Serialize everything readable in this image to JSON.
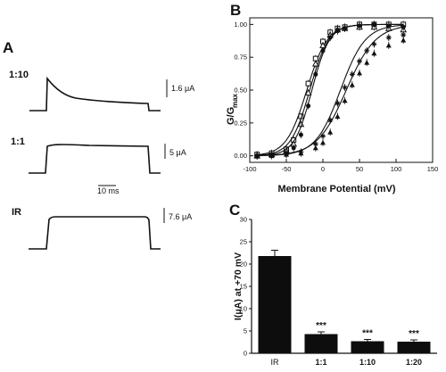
{
  "panel_labels": {
    "a": "A",
    "b": "B",
    "c": "C"
  },
  "traces": [
    {
      "label": "1:10",
      "scale": "1.6 μA"
    },
    {
      "label": "1:1",
      "scale": "5 μA"
    },
    {
      "label": "IR",
      "scale": "7.6 μA"
    }
  ],
  "time_scale": "10 ms",
  "chart_data": [
    {
      "panel": "B",
      "type": "scatter",
      "xlabel": "Membrane Potential (mV)",
      "ylabel": "G/G",
      "ylabel_sub": "max",
      "xlim": [
        -100,
        150
      ],
      "ylim": [
        -0.05,
        1.05
      ],
      "xticks": [
        "-100",
        "-50",
        "0",
        "50",
        "100",
        "150"
      ],
      "yticks": [
        "0.00",
        "0.25",
        "0.50",
        "0.75",
        "1.00"
      ],
      "series": [
        {
          "marker": "open-square",
          "half_activation": -22,
          "slope": 14,
          "x": [
            -90,
            -70,
            -50,
            -40,
            -30,
            -20,
            -10,
            0,
            10,
            20,
            30,
            50,
            70,
            90,
            110
          ],
          "y": [
            0.01,
            0.02,
            0.05,
            0.12,
            0.3,
            0.55,
            0.74,
            0.87,
            0.94,
            0.97,
            0.98,
            1.0,
            1.0,
            1.0,
            1.0
          ]
        },
        {
          "marker": "open-triangle",
          "half_activation": -18,
          "slope": 13,
          "x": [
            -90,
            -70,
            -50,
            -40,
            -30,
            -20,
            -10,
            0,
            10,
            20,
            30,
            50,
            70,
            90,
            110
          ],
          "y": [
            0.0,
            0.01,
            0.04,
            0.09,
            0.24,
            0.48,
            0.7,
            0.84,
            0.92,
            0.96,
            0.97,
            0.98,
            0.98,
            0.97,
            0.96
          ]
        },
        {
          "marker": "filled-circle",
          "half_activation": -15,
          "slope": 12,
          "x": [
            -90,
            -70,
            -50,
            -40,
            -30,
            -20,
            -10,
            0,
            10,
            20,
            30,
            50,
            70,
            90,
            110
          ],
          "y": [
            0.0,
            0.01,
            0.02,
            0.06,
            0.16,
            0.38,
            0.62,
            0.8,
            0.9,
            0.95,
            0.97,
            0.99,
            1.0,
            0.99,
            0.98
          ]
        },
        {
          "marker": "filled-triangle",
          "half_activation": 32,
          "slope": 20,
          "x": [
            -90,
            -70,
            -50,
            -30,
            -10,
            0,
            10,
            20,
            30,
            40,
            50,
            60,
            70,
            90,
            110
          ],
          "y": [
            0.0,
            0.0,
            0.01,
            0.02,
            0.06,
            0.1,
            0.18,
            0.3,
            0.42,
            0.54,
            0.63,
            0.71,
            0.78,
            0.84,
            0.88
          ]
        },
        {
          "marker": "star",
          "half_activation": 24,
          "slope": 17,
          "x": [
            -90,
            -70,
            -50,
            -30,
            -10,
            0,
            10,
            20,
            30,
            40,
            50,
            60,
            70,
            90,
            110
          ],
          "y": [
            0.0,
            0.01,
            0.01,
            0.03,
            0.09,
            0.15,
            0.27,
            0.4,
            0.52,
            0.62,
            0.72,
            0.8,
            0.85,
            0.9,
            0.92
          ]
        }
      ]
    },
    {
      "panel": "C",
      "type": "bar",
      "ylabel": "I(μA) at +70 mV",
      "ylim": [
        0,
        30
      ],
      "yticks": [
        "0",
        "5",
        "10",
        "15",
        "20",
        "25",
        "30"
      ],
      "categories": [
        "IR",
        "1:1",
        "1:10",
        "1:20"
      ],
      "values": [
        21.8,
        4.3,
        2.7,
        2.6
      ],
      "errors": [
        1.3,
        0.5,
        0.4,
        0.4
      ],
      "annotations": [
        "",
        "***",
        "***",
        "***"
      ]
    }
  ]
}
